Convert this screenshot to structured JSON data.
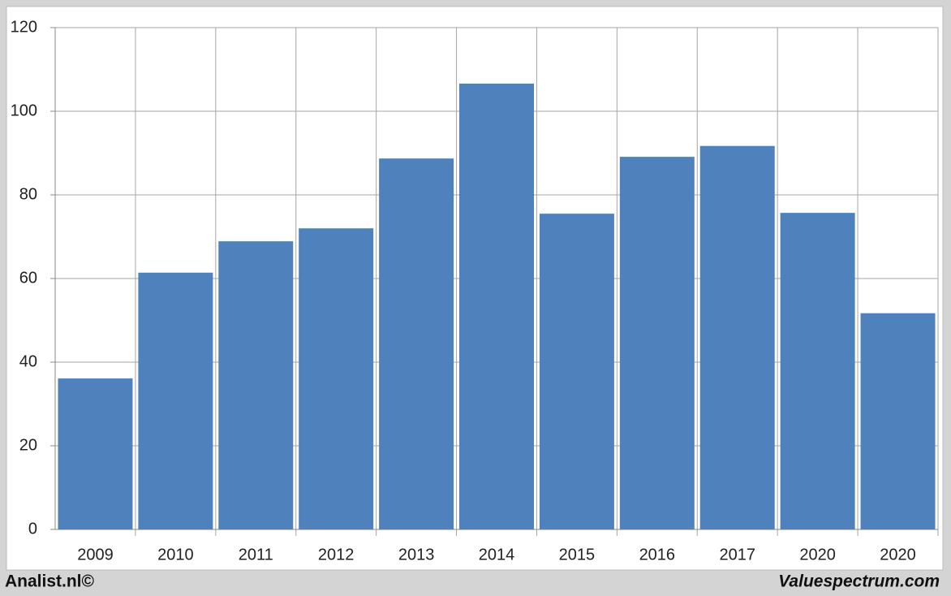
{
  "chart_data": {
    "type": "bar",
    "categories": [
      "2009",
      "2010",
      "2011",
      "2012",
      "2013",
      "2014",
      "2015",
      "2016",
      "2017",
      "2020",
      "2020"
    ],
    "values": [
      36.1,
      61.4,
      68.9,
      72.0,
      88.7,
      106.6,
      75.5,
      89.1,
      91.7,
      75.7,
      51.7
    ],
    "color": "#4f81bd",
    "ylim": [
      0,
      120
    ],
    "yticks": [
      0,
      20,
      40,
      60,
      80,
      100,
      120
    ],
    "grid": true
  },
  "footer": {
    "left": "Analist.nl©",
    "right": "Valuespectrum.com"
  }
}
